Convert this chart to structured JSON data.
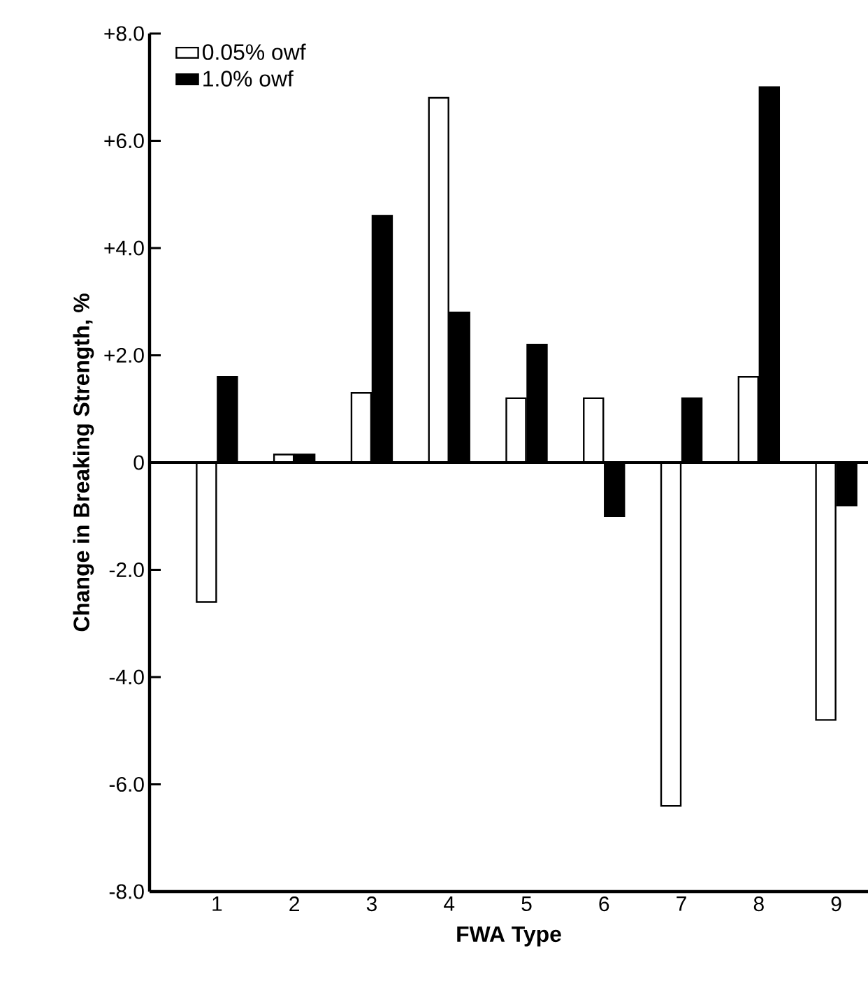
{
  "chart_data": {
    "type": "bar",
    "xlabel": "FWA Type",
    "ylabel": "Change in Breaking Strength, %",
    "categories": [
      "1",
      "2",
      "3",
      "4",
      "5",
      "6",
      "7",
      "8",
      "9"
    ],
    "series": [
      {
        "name": "0.05% owf",
        "color": "#ffffff",
        "values": [
          -2.6,
          0.15,
          1.3,
          6.8,
          1.2,
          1.2,
          -6.4,
          1.6,
          -4.8
        ]
      },
      {
        "name": "1.0% owf",
        "color": "#000000",
        "values": [
          1.6,
          0.15,
          4.6,
          2.8,
          2.2,
          -1.0,
          1.2,
          7.0,
          -0.8
        ]
      }
    ],
    "ylim": [
      -8,
      8
    ],
    "yticks": [
      {
        "value": -8,
        "label": "-8.0"
      },
      {
        "value": -6,
        "label": "-6.0"
      },
      {
        "value": -4,
        "label": "-4.0"
      },
      {
        "value": -2,
        "label": "-2.0"
      },
      0,
      {
        "value": 2,
        "label": "+2.0"
      },
      {
        "value": 4,
        "label": "+4.0"
      },
      {
        "value": 6,
        "label": "+6.0"
      },
      {
        "value": 8,
        "label": "+8.0"
      }
    ],
    "ref_lines": [
      {
        "axis": "y",
        "value": 0
      }
    ],
    "grid": false,
    "legend": "top left"
  }
}
